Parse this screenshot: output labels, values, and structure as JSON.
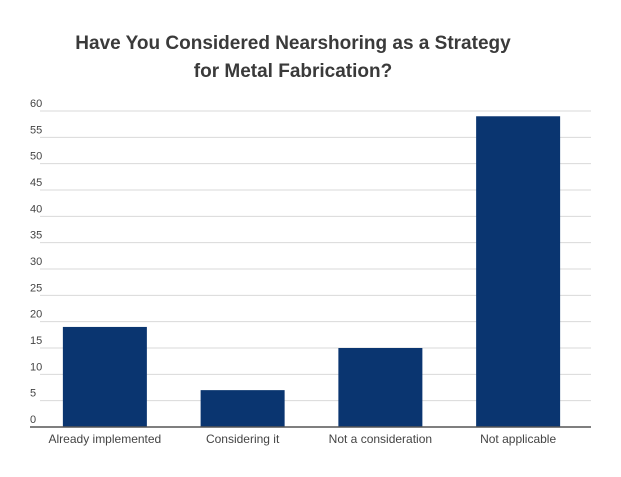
{
  "chart_data": {
    "type": "bar",
    "title_lines": [
      "Have You Considered Nearshoring as a Strategy",
      "for Metal Fabrication?"
    ],
    "categories": [
      "Already implemented",
      "Considering it",
      "Not a consideration",
      "Not applicable"
    ],
    "values": [
      19,
      7,
      15,
      59
    ],
    "ylim": [
      0,
      60
    ],
    "yticks": [
      0,
      5,
      10,
      15,
      20,
      25,
      30,
      35,
      40,
      45,
      50,
      55,
      60
    ],
    "grid": true,
    "colors": {
      "bar": "#0a3570",
      "grid": "#d9d9d9",
      "axis": "#555555"
    }
  }
}
